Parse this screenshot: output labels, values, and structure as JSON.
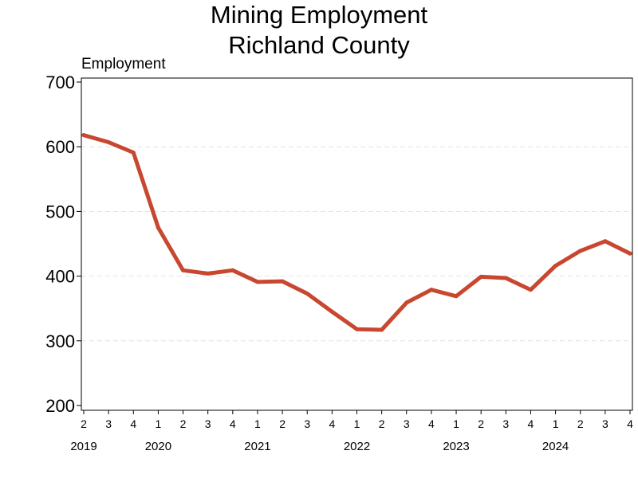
{
  "chart_data": {
    "type": "line",
    "title": "Mining Employment",
    "subtitle": "Richland County",
    "ylabel": "Employment",
    "xlabel": "",
    "ylim": [
      200,
      700
    ],
    "yticks": [
      200,
      300,
      400,
      500,
      600,
      700
    ],
    "grid": "horizontal dashed",
    "line_color": "#c8472f",
    "x_quarters": [
      "2",
      "3",
      "4",
      "1",
      "2",
      "3",
      "4",
      "1",
      "2",
      "3",
      "4",
      "1",
      "2",
      "3",
      "4",
      "1",
      "2",
      "3",
      "4",
      "1",
      "2",
      "3",
      "4"
    ],
    "x_years": [
      {
        "label": "2019",
        "start_index": 0
      },
      {
        "label": "2020",
        "start_index": 3
      },
      {
        "label": "2021",
        "start_index": 7
      },
      {
        "label": "2022",
        "start_index": 11
      },
      {
        "label": "2023",
        "start_index": 15
      },
      {
        "label": "2024",
        "start_index": 19
      }
    ],
    "series": [
      {
        "values": [
          618,
          607,
          591,
          475,
          409,
          404,
          409,
          391,
          392,
          373,
          345,
          318,
          317,
          359,
          379,
          369,
          399,
          397,
          379,
          416,
          439,
          454,
          435
        ]
      }
    ]
  }
}
